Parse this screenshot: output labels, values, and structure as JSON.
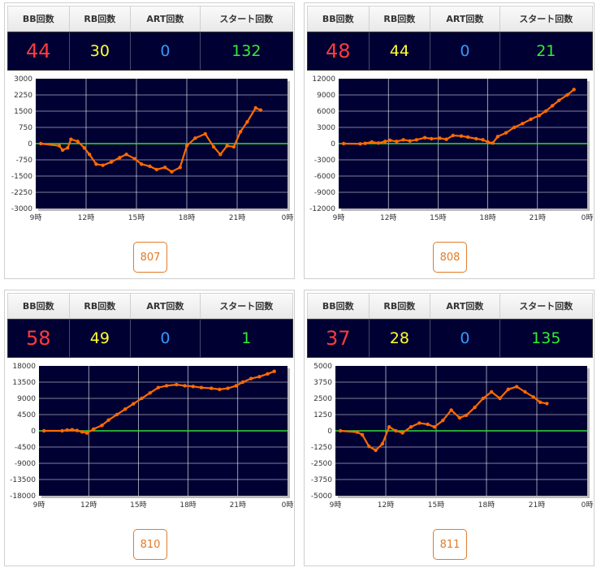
{
  "headers": {
    "bb": "BB回数",
    "rb": "RB回数",
    "art": "ART回数",
    "start": "スタート回数"
  },
  "x_ticks": [
    "9時",
    "12時",
    "15時",
    "18時",
    "21時",
    "0時"
  ],
  "colors": {
    "line": "#ff6a00",
    "zero_line": "#33dd33",
    "plot_bg": "#000033",
    "grid": "#ffffff"
  },
  "machines": [
    {
      "number": "807",
      "bb": "44",
      "rb": "30",
      "art": "0",
      "start": "132",
      "chart_data": {
        "type": "line",
        "ylim": [
          -3000,
          3000
        ],
        "y_ticks": [
          "3000",
          "2250",
          "1500",
          "750",
          "0",
          "-750",
          "-1500",
          "-2250",
          "-3000"
        ],
        "x_range": [
          9,
          24
        ],
        "points": [
          [
            9.3,
            0
          ],
          [
            10.4,
            -100
          ],
          [
            10.6,
            -300
          ],
          [
            10.9,
            -200
          ],
          [
            11.1,
            200
          ],
          [
            11.5,
            100
          ],
          [
            11.9,
            -200
          ],
          [
            12.2,
            -500
          ],
          [
            12.6,
            -950
          ],
          [
            13.0,
            -1000
          ],
          [
            13.5,
            -850
          ],
          [
            14.0,
            -650
          ],
          [
            14.4,
            -500
          ],
          [
            14.9,
            -700
          ],
          [
            15.3,
            -950
          ],
          [
            15.8,
            -1050
          ],
          [
            16.2,
            -1200
          ],
          [
            16.7,
            -1100
          ],
          [
            17.1,
            -1300
          ],
          [
            17.6,
            -1100
          ],
          [
            18.0,
            -100
          ],
          [
            18.5,
            250
          ],
          [
            19.1,
            450
          ],
          [
            19.6,
            -150
          ],
          [
            20.0,
            -500
          ],
          [
            20.4,
            -100
          ],
          [
            20.8,
            -150
          ],
          [
            21.2,
            550
          ],
          [
            21.6,
            1000
          ],
          [
            22.1,
            1650
          ],
          [
            22.4,
            1550
          ]
        ]
      }
    },
    {
      "number": "808",
      "bb": "48",
      "rb": "44",
      "art": "0",
      "start": "21",
      "chart_data": {
        "type": "line",
        "ylim": [
          -12000,
          12000
        ],
        "y_ticks": [
          "12000",
          "9000",
          "6000",
          "3000",
          "0",
          "-3000",
          "-6000",
          "-9000",
          "-12000"
        ],
        "x_range": [
          9,
          24
        ],
        "points": [
          [
            9.3,
            0
          ],
          [
            10.3,
            -50
          ],
          [
            10.6,
            50
          ],
          [
            11.0,
            300
          ],
          [
            11.4,
            100
          ],
          [
            11.8,
            400
          ],
          [
            12.1,
            600
          ],
          [
            12.5,
            400
          ],
          [
            12.9,
            700
          ],
          [
            13.3,
            500
          ],
          [
            13.7,
            700
          ],
          [
            14.2,
            1100
          ],
          [
            14.6,
            900
          ],
          [
            15.1,
            1000
          ],
          [
            15.5,
            800
          ],
          [
            15.9,
            1500
          ],
          [
            16.4,
            1400
          ],
          [
            16.8,
            1200
          ],
          [
            17.3,
            900
          ],
          [
            17.7,
            700
          ],
          [
            18.0,
            300
          ],
          [
            18.3,
            100
          ],
          [
            18.6,
            1300
          ],
          [
            19.1,
            2000
          ],
          [
            19.6,
            3000
          ],
          [
            20.1,
            3700
          ],
          [
            20.6,
            4500
          ],
          [
            21.1,
            5200
          ],
          [
            21.5,
            6000
          ],
          [
            21.9,
            7000
          ],
          [
            22.3,
            8000
          ],
          [
            22.8,
            9000
          ],
          [
            23.2,
            10000
          ]
        ]
      }
    },
    {
      "number": "810",
      "bb": "58",
      "rb": "49",
      "art": "0",
      "start": "1",
      "chart_data": {
        "type": "line",
        "ylim": [
          -18000,
          18000
        ],
        "y_ticks": [
          "18000",
          "13500",
          "9000",
          "4500",
          "0",
          "-4500",
          "-9000",
          "-13500",
          "-18000"
        ],
        "x_range": [
          9,
          24
        ],
        "points": [
          [
            9.3,
            0
          ],
          [
            10.4,
            0
          ],
          [
            10.7,
            200
          ],
          [
            11.0,
            300
          ],
          [
            11.3,
            100
          ],
          [
            11.6,
            -300
          ],
          [
            11.9,
            -600
          ],
          [
            12.3,
            500
          ],
          [
            12.8,
            1500
          ],
          [
            13.2,
            3000
          ],
          [
            13.7,
            4500
          ],
          [
            14.2,
            6000
          ],
          [
            14.7,
            7500
          ],
          [
            15.2,
            9000
          ],
          [
            15.7,
            10500
          ],
          [
            16.2,
            12000
          ],
          [
            16.7,
            12500
          ],
          [
            17.3,
            12800
          ],
          [
            17.8,
            12500
          ],
          [
            18.3,
            12300
          ],
          [
            18.8,
            12000
          ],
          [
            19.4,
            11800
          ],
          [
            19.9,
            11500
          ],
          [
            20.4,
            11800
          ],
          [
            20.9,
            12500
          ],
          [
            21.3,
            13500
          ],
          [
            21.8,
            14500
          ],
          [
            22.3,
            15000
          ],
          [
            22.8,
            15800
          ],
          [
            23.2,
            16500
          ]
        ]
      }
    },
    {
      "number": "811",
      "bb": "37",
      "rb": "28",
      "art": "0",
      "start": "135",
      "chart_data": {
        "type": "line",
        "ylim": [
          -5000,
          5000
        ],
        "y_ticks": [
          "5000",
          "3750",
          "2500",
          "1250",
          "0",
          "-1250",
          "-2500",
          "-3750",
          "-5000"
        ],
        "x_range": [
          9,
          24
        ],
        "points": [
          [
            9.3,
            0
          ],
          [
            10.3,
            -100
          ],
          [
            10.6,
            -300
          ],
          [
            11.0,
            -1200
          ],
          [
            11.4,
            -1500
          ],
          [
            11.8,
            -1000
          ],
          [
            12.2,
            300
          ],
          [
            12.6,
            0
          ],
          [
            13.0,
            -150
          ],
          [
            13.5,
            300
          ],
          [
            14.0,
            600
          ],
          [
            14.5,
            500
          ],
          [
            14.9,
            300
          ],
          [
            15.4,
            800
          ],
          [
            15.9,
            1600
          ],
          [
            16.4,
            1000
          ],
          [
            16.8,
            1200
          ],
          [
            17.3,
            1800
          ],
          [
            17.8,
            2500
          ],
          [
            18.3,
            3000
          ],
          [
            18.8,
            2500
          ],
          [
            19.3,
            3200
          ],
          [
            19.8,
            3400
          ],
          [
            20.3,
            3000
          ],
          [
            20.8,
            2600
          ],
          [
            21.2,
            2200
          ],
          [
            21.6,
            2100
          ]
        ]
      }
    }
  ]
}
